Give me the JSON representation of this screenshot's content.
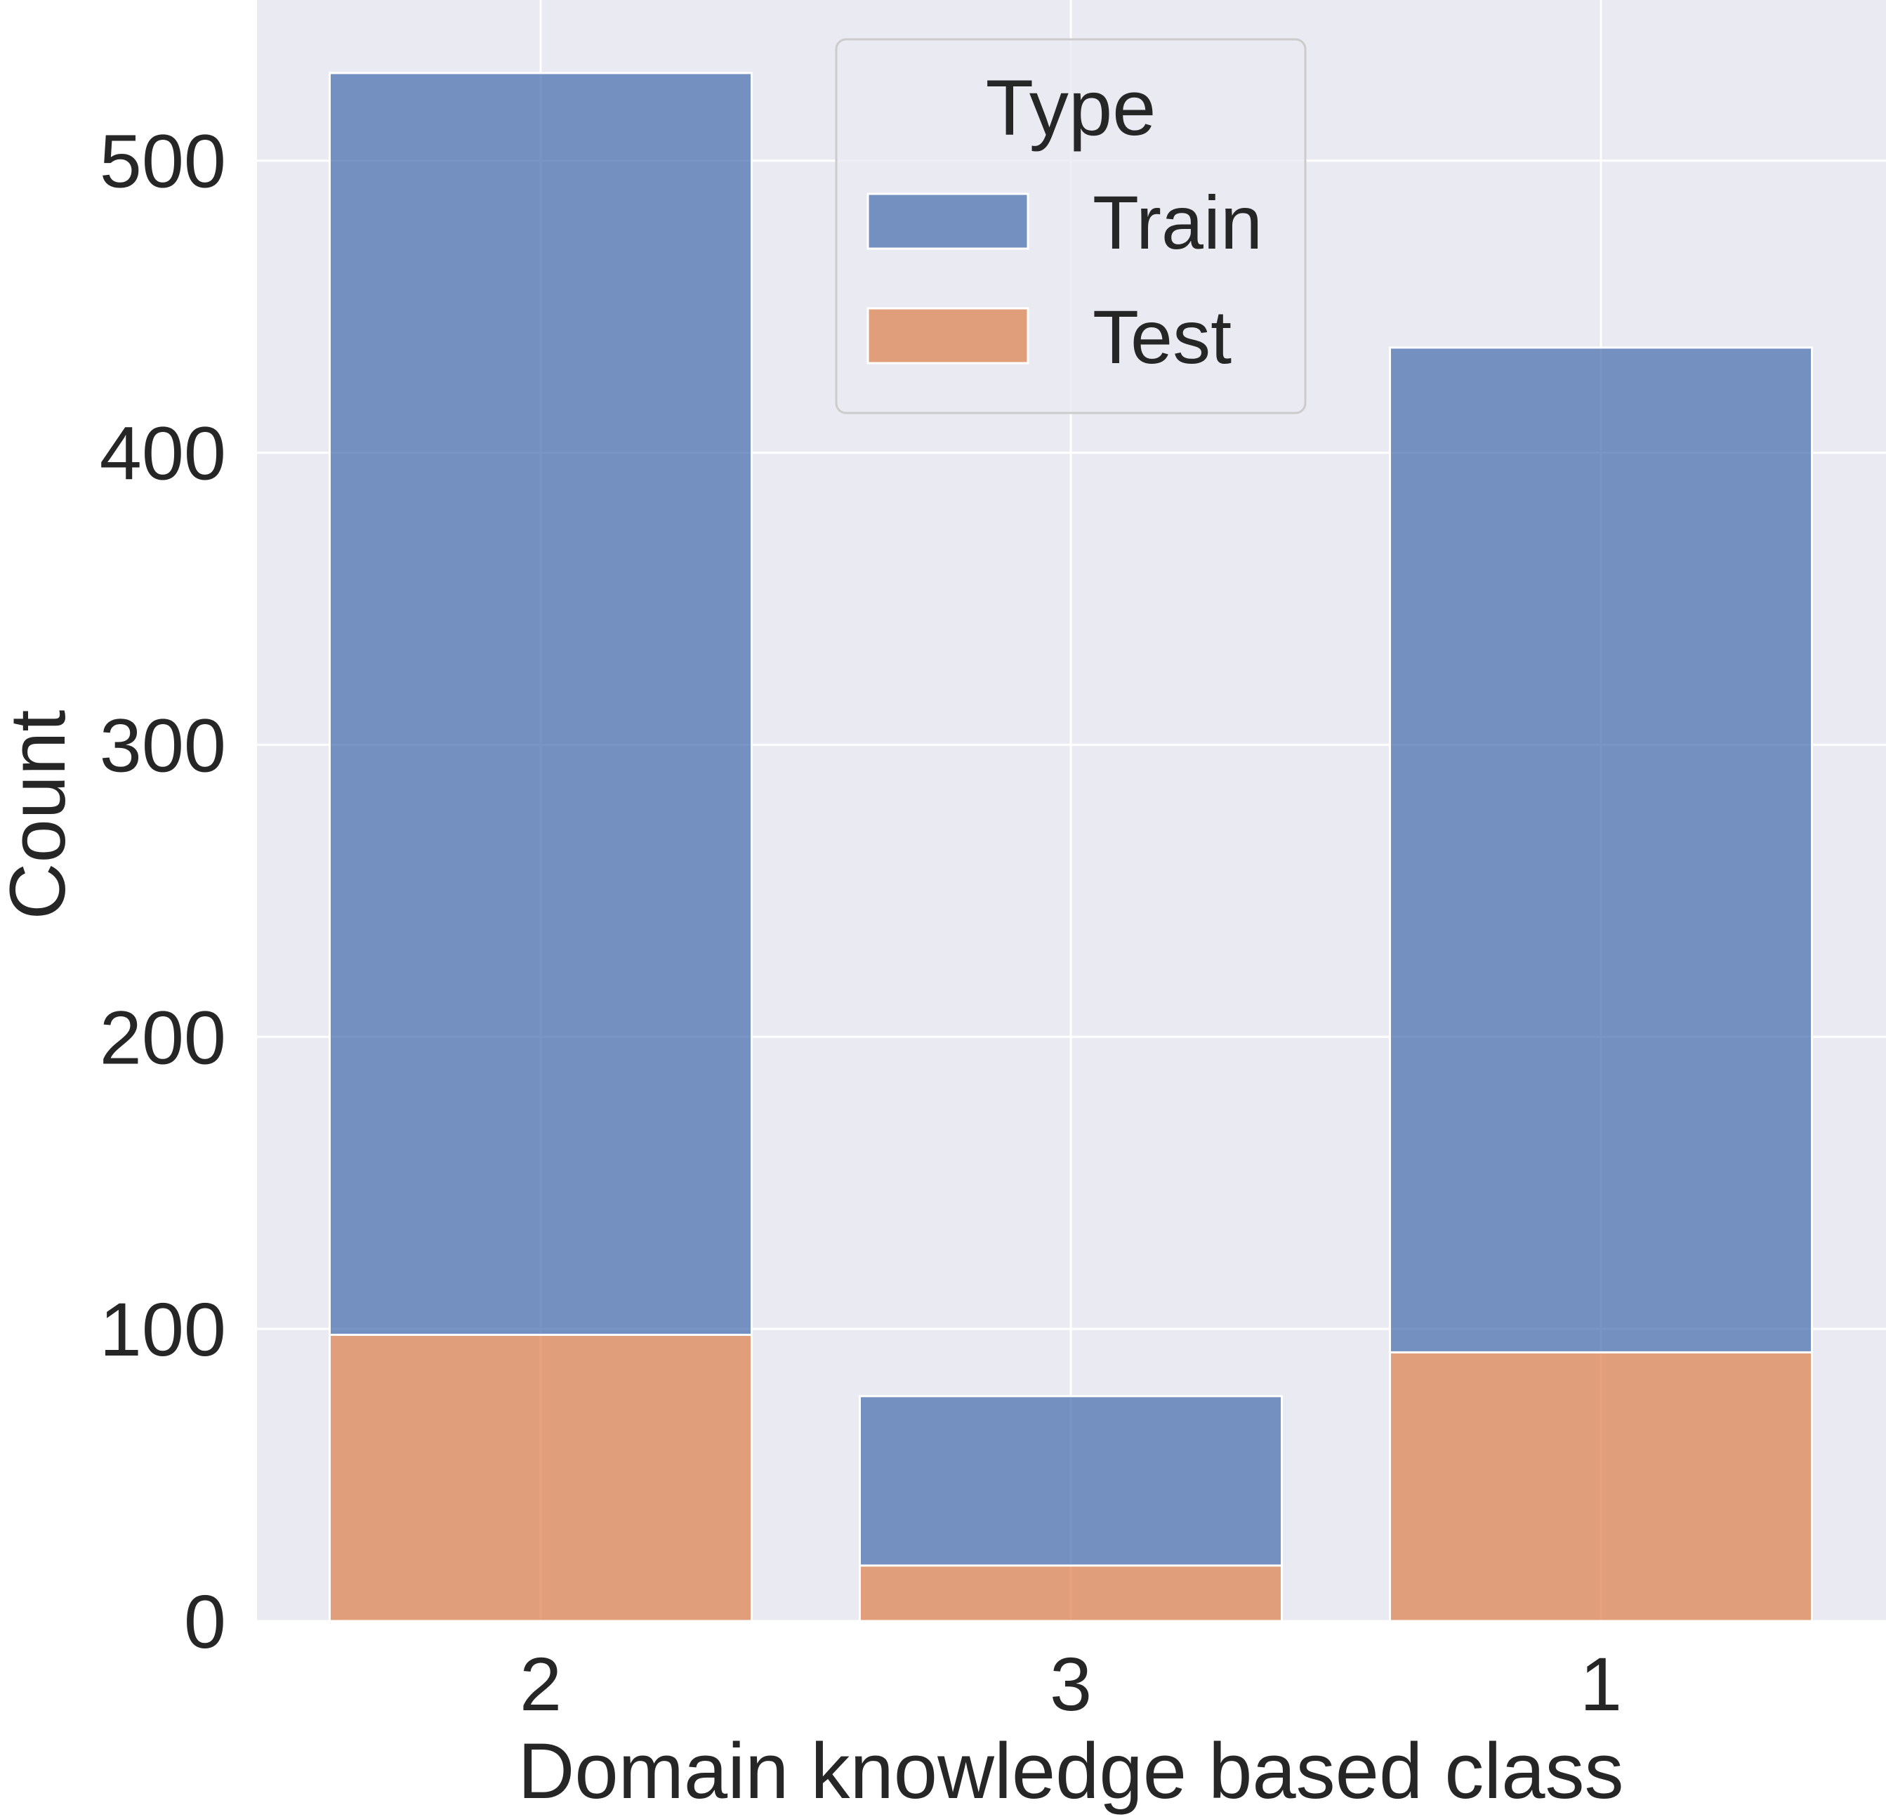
{
  "chart_data": {
    "type": "bar",
    "stacked": true,
    "title": "",
    "xlabel": "Domain knowledge based class",
    "ylabel": "Count",
    "categories": [
      "2",
      "3",
      "1"
    ],
    "series": [
      {
        "name": "Test",
        "values": [
          98,
          19,
          92
        ],
        "color": "#dd8452"
      },
      {
        "name": "Train",
        "values": [
          432,
          58,
          344
        ],
        "color": "#4c72b0"
      }
    ],
    "totals": [
      530,
      77,
      436
    ],
    "ylim": [
      0,
      555
    ],
    "yticks": [
      0,
      100,
      200,
      300,
      400,
      500
    ],
    "grid": true,
    "background": "#eaeaf2",
    "legend": {
      "title": "Type",
      "placement": "top-center",
      "entries": [
        {
          "label": "Train",
          "color": "#4c72b0"
        },
        {
          "label": "Test",
          "color": "#dd8452"
        }
      ]
    }
  }
}
